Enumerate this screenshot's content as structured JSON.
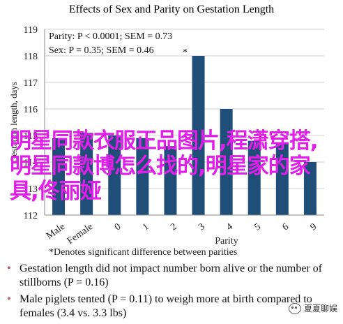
{
  "chart_data": {
    "type": "bar",
    "title": "Effects of Sex and Parity on Gestation Length",
    "ylabel": "Gestation length, days",
    "xlabel": "Parity",
    "ylim": [
      112,
      119
    ],
    "yticks": [
      112,
      113,
      114,
      115,
      116,
      117,
      118,
      119
    ],
    "categories": [
      "Male",
      "Female",
      "0",
      "1",
      "2",
      "3",
      "4",
      "5",
      "6",
      "9"
    ],
    "values": [
      114.9,
      115.1,
      115.0,
      114.9,
      114.6,
      118.0,
      116.0,
      114.8,
      114.7,
      114.0
    ],
    "bar_color": "#1f4e79",
    "grid": true,
    "annotations": [
      "Parity: P < 0.0001; SEM = 0.73",
      "Sex: P = 0.35; SEM = 0.46"
    ],
    "star_marker": "*"
  },
  "footnote": "*Denotes significant difference between parities",
  "bullets": [
    "Gestation length did not impact number born alive or the number of stillborns (P = 0.16)",
    "Male piglets tented (P = 0.11) to weigh more at birth compared to females (3.4 vs. 3.3 lbs)"
  ],
  "overlay_text": "明星同款衣服正品图片,程潇穿搭,明星同款博怎么找的,明星家的家具,佟丽娅",
  "watermark": "夏夏聊娱"
}
